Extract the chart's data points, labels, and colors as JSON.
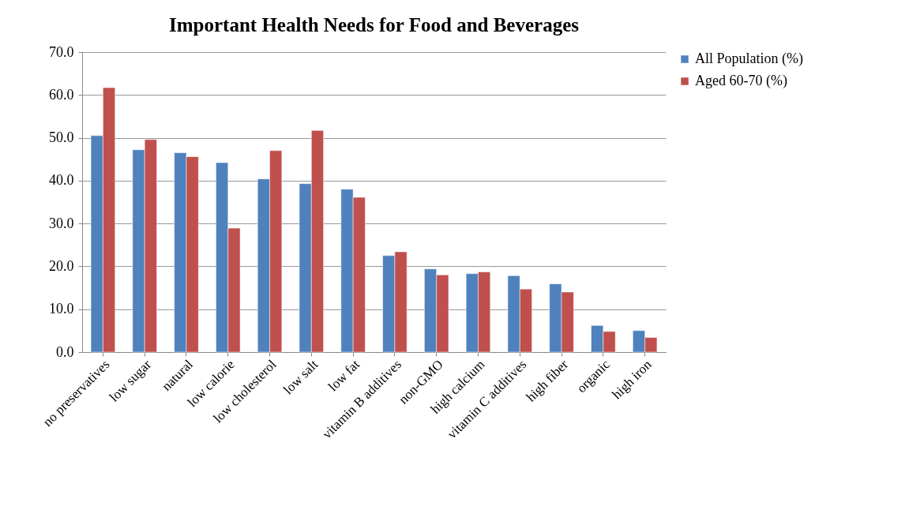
{
  "chart_data": {
    "type": "bar",
    "title": "Important Health Needs for Food and Beverages",
    "categories": [
      "no preservatives",
      "low sugar",
      "natural",
      "low calorie",
      "low cholesterol",
      "low salt",
      "low fat",
      "vitamin B additives",
      "non-GMO",
      "high calcium",
      "vitamin C additives",
      "high fiber",
      "organic",
      "high iron"
    ],
    "series": [
      {
        "name": "All Population (%)",
        "color": "#4f81bd",
        "values": [
          50.5,
          47.2,
          46.5,
          44.2,
          40.4,
          39.3,
          38.0,
          22.5,
          19.4,
          18.3,
          17.8,
          15.9,
          6.2,
          5.0
        ]
      },
      {
        "name": "Aged 60-70 (%)",
        "color": "#c0504d",
        "values": [
          61.7,
          49.6,
          45.6,
          28.9,
          47.0,
          51.7,
          36.1,
          23.4,
          18.0,
          18.7,
          14.7,
          14.0,
          4.8,
          3.4
        ]
      }
    ],
    "ylim": [
      0,
      70
    ],
    "yticks": [
      {
        "value": 0,
        "label": "0.0"
      },
      {
        "value": 10,
        "label": "10.0"
      },
      {
        "value": 20,
        "label": "20.0"
      },
      {
        "value": 30,
        "label": "30.0"
      },
      {
        "value": 40,
        "label": "40.0"
      },
      {
        "value": 50,
        "label": "50.0"
      },
      {
        "value": 60,
        "label": "60.0"
      },
      {
        "value": 70,
        "label": "70.0"
      }
    ],
    "grid": "y",
    "legend": "right"
  }
}
